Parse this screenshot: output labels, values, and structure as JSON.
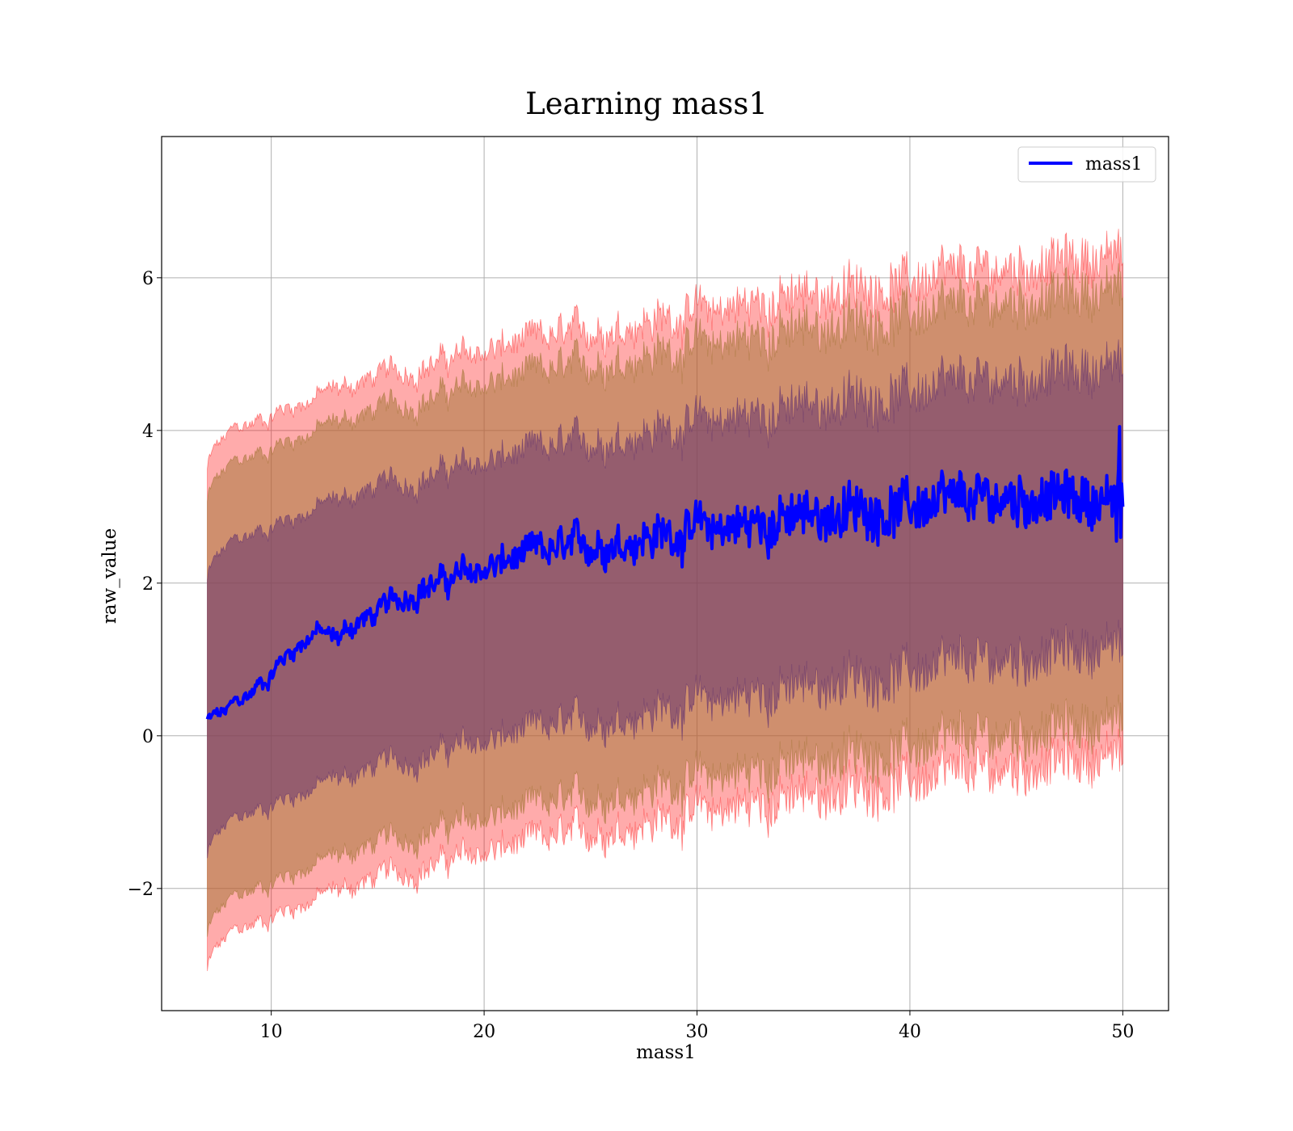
{
  "chart_data": {
    "type": "area",
    "title": "Learning mass1",
    "xlabel": "mass1",
    "ylabel": "raw_value",
    "xlim": [
      4.85,
      52.15
    ],
    "ylim": [
      -3.6,
      7.85
    ],
    "xticks": [
      10,
      20,
      30,
      40,
      50
    ],
    "yticks": [
      -2,
      0,
      2,
      4,
      6
    ],
    "grid": true,
    "legend_position": "top-right",
    "mean_anchors": {
      "x": [
        7,
        8,
        9,
        10,
        11,
        12,
        13,
        14,
        15,
        16,
        17,
        18,
        19,
        20,
        22,
        24,
        26,
        28,
        30,
        32,
        34,
        36,
        38,
        40,
        42,
        44,
        46,
        48,
        50
      ],
      "y": [
        0.2,
        0.3,
        0.55,
        0.85,
        1.15,
        1.38,
        1.25,
        1.5,
        1.58,
        1.78,
        1.98,
        2.0,
        2.1,
        2.18,
        2.35,
        2.45,
        2.55,
        2.62,
        2.7,
        2.75,
        2.82,
        2.9,
        2.95,
        3.0,
        3.05,
        3.1,
        3.12,
        3.1,
        3.05
      ]
    },
    "series": [
      {
        "name": "mass1",
        "color": "#0000ff",
        "role": "mean-line"
      }
    ],
    "bands": [
      {
        "level": "outer",
        "x_start": 7,
        "x_end": 50,
        "upper_start": 3.48,
        "upper_end": 6.3,
        "lower_start": -3.1,
        "lower_end": -0.25,
        "color": "#ff0000",
        "opacity": 0.33
      },
      {
        "level": "middle",
        "x_start": 7,
        "x_end": 50,
        "upper_start": 3.05,
        "upper_end": 5.85,
        "lower_start": -2.65,
        "lower_end": 0.2,
        "color": "#a8783c",
        "opacity": 0.55
      },
      {
        "level": "inner",
        "x_start": 7,
        "x_end": 50,
        "upper_start": 2.02,
        "upper_end": 4.85,
        "lower_start": -1.62,
        "lower_end": 1.18,
        "color": "#6e3c6e",
        "opacity": 0.6
      }
    ]
  }
}
